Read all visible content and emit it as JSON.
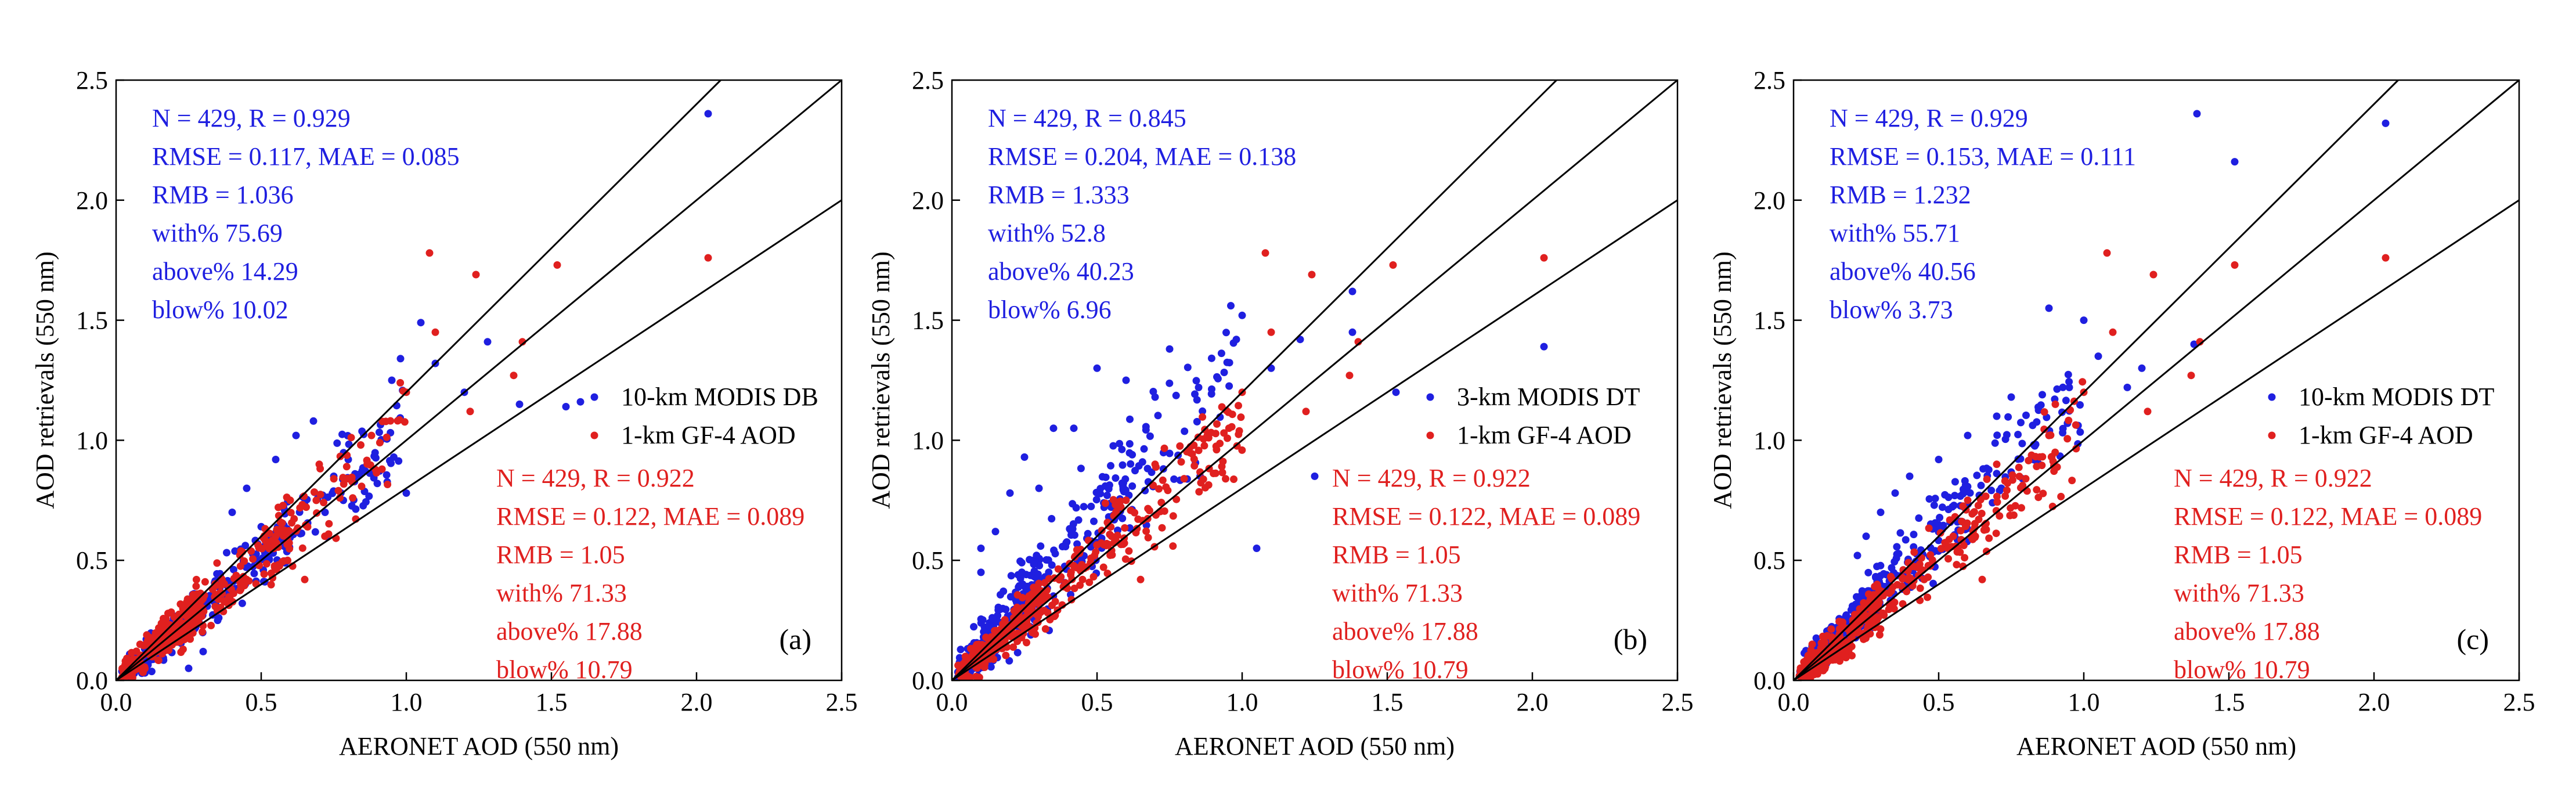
{
  "colors": {
    "modis": "#1f1fe0",
    "gf4": "#e0201f",
    "axis": "#000000"
  },
  "chart_data": [
    {
      "type": "scatter",
      "panel_label": "(a)",
      "xlabel": "AERONET AOD (550 nm)",
      "ylabel": "AOD retrievals (550 nm)",
      "xlim": [
        0,
        2.5
      ],
      "ylim": [
        0,
        2.5
      ],
      "xticks": [
        "0.0",
        "0.5",
        "1.0",
        "1.5",
        "2.0",
        "2.5"
      ],
      "yticks": [
        "0.0",
        "0.5",
        "1.0",
        "1.5",
        "2.0",
        "2.5"
      ],
      "reference_lines": [
        {
          "name": "1:1 line",
          "slope": 1.0
        },
        {
          "name": "upper EE envelope",
          "slope": 1.2
        },
        {
          "name": "lower EE envelope",
          "slope": 0.8
        }
      ],
      "legend": [
        {
          "label": "10-km MODIS DB",
          "color": "#1f1fe0"
        },
        {
          "label": "1-km GF-4 AOD",
          "color": "#e0201f"
        }
      ],
      "stats_modis": [
        "N = 429, R = 0.929",
        "RMSE = 0.117, MAE = 0.085",
        "RMB = 1.036",
        "with% 75.69",
        "above% 14.29",
        "blow% 10.02"
      ],
      "stats_gf4": [
        "N = 429, R = 0.922",
        "RMSE = 0.122, MAE = 0.089",
        "RMB = 1.05",
        "with% 71.33",
        "above% 17.88",
        "blow% 10.79"
      ],
      "series": [
        {
          "name": "10-km MODIS DB",
          "color": "#1f1fe0",
          "seed": 11,
          "slope": 1.04,
          "spread": 0.17,
          "points": [
            [
              2.04,
              2.36
            ],
            [
              1.28,
              1.41
            ],
            [
              1.6,
              1.16
            ],
            [
              1.55,
              1.14
            ],
            [
              1.39,
              1.15
            ],
            [
              1.05,
              1.49
            ],
            [
              0.98,
              1.34
            ],
            [
              1.1,
              1.32
            ],
            [
              1.2,
              1.2
            ],
            [
              0.95,
              1.25
            ],
            [
              1.0,
              0.78
            ],
            [
              0.9,
              0.82
            ],
            [
              0.68,
              1.08
            ],
            [
              0.62,
              1.02
            ],
            [
              0.55,
              0.92
            ],
            [
              0.45,
              0.8
            ],
            [
              0.4,
              0.7
            ],
            [
              0.5,
              0.64
            ],
            [
              0.75,
              0.85
            ],
            [
              0.8,
              0.92
            ],
            [
              0.72,
              0.7
            ],
            [
              0.35,
              0.25
            ],
            [
              0.3,
              0.12
            ],
            [
              0.25,
              0.05
            ]
          ]
        },
        {
          "name": "1-km GF-4 AOD",
          "color": "#e0201f",
          "seed": 23,
          "slope": 1.05,
          "spread": 0.18,
          "points": [
            [
              2.04,
              1.76
            ],
            [
              1.52,
              1.73
            ],
            [
              1.08,
              1.78
            ],
            [
              1.24,
              1.69
            ],
            [
              1.4,
              1.41
            ],
            [
              1.37,
              1.27
            ],
            [
              1.22,
              1.12
            ],
            [
              1.0,
              1.2
            ],
            [
              1.1,
              1.45
            ],
            [
              0.88,
              1.02
            ],
            [
              0.8,
              0.84
            ],
            [
              0.7,
              0.9
            ],
            [
              0.55,
              0.6
            ],
            [
              0.6,
              0.75
            ],
            [
              0.45,
              0.42
            ],
            [
              0.65,
              0.42
            ]
          ]
        }
      ]
    },
    {
      "type": "scatter",
      "panel_label": "(b)",
      "xlabel": "AERONET AOD (550 nm)",
      "ylabel": "AOD retrievals (550 nm)",
      "xlim": [
        0,
        2.5
      ],
      "ylim": [
        0,
        2.5
      ],
      "xticks": [
        "0.0",
        "0.5",
        "1.0",
        "1.5",
        "2.0",
        "2.5"
      ],
      "yticks": [
        "0.0",
        "0.5",
        "1.0",
        "1.5",
        "2.0",
        "2.5"
      ],
      "reference_lines": [
        {
          "name": "1:1 line",
          "slope": 1.0
        },
        {
          "name": "upper EE envelope",
          "slope": 1.2
        },
        {
          "name": "lower EE envelope",
          "slope": 0.8
        }
      ],
      "legend": [
        {
          "label": "3-km MODIS DT",
          "color": "#1f1fe0"
        },
        {
          "label": "1-km GF-4 AOD",
          "color": "#e0201f"
        }
      ],
      "stats_modis": [
        "N = 429, R = 0.845",
        "RMSE = 0.204, MAE = 0.138",
        "RMB = 1.333",
        "with% 52.8",
        "above% 40.23",
        "blow% 6.96"
      ],
      "stats_gf4": [
        "N = 429, R = 0.922",
        "RMSE = 0.122, MAE = 0.089",
        "RMB = 1.05",
        "with% 71.33",
        "above% 17.88",
        "blow% 10.79"
      ],
      "series": [
        {
          "name": "3-km MODIS DT",
          "color": "#1f1fe0",
          "seed": 37,
          "slope": 1.33,
          "spread": 0.3,
          "points": [
            [
              2.04,
              1.39
            ],
            [
              1.38,
              1.62
            ],
            [
              1.38,
              1.45
            ],
            [
              1.2,
              1.42
            ],
            [
              1.53,
              1.2
            ],
            [
              1.1,
              1.3
            ],
            [
              1.0,
              1.52
            ],
            [
              0.98,
              1.42
            ],
            [
              0.85,
              1.22
            ],
            [
              0.75,
              1.38
            ],
            [
              0.7,
              1.18
            ],
            [
              0.6,
              1.25
            ],
            [
              0.5,
              1.3
            ],
            [
              0.42,
              1.05
            ],
            [
              0.35,
              1.05
            ],
            [
              0.25,
              0.93
            ],
            [
              0.3,
              0.8
            ],
            [
              0.2,
              0.78
            ],
            [
              0.15,
              0.62
            ],
            [
              0.1,
              0.55
            ],
            [
              0.1,
              0.45
            ],
            [
              1.05,
              0.55
            ],
            [
              1.25,
              0.85
            ]
          ]
        },
        {
          "name": "1-km GF-4 AOD",
          "color": "#e0201f",
          "seed": 41,
          "slope": 1.05,
          "spread": 0.18,
          "points": [
            [
              2.04,
              1.76
            ],
            [
              1.52,
              1.73
            ],
            [
              1.08,
              1.78
            ],
            [
              1.24,
              1.69
            ],
            [
              1.4,
              1.41
            ],
            [
              1.37,
              1.27
            ],
            [
              1.22,
              1.12
            ],
            [
              1.0,
              1.2
            ],
            [
              1.1,
              1.45
            ],
            [
              0.88,
              1.02
            ],
            [
              0.8,
              0.84
            ],
            [
              0.7,
              0.9
            ],
            [
              0.55,
              0.6
            ],
            [
              0.6,
              0.75
            ],
            [
              0.45,
              0.42
            ],
            [
              0.65,
              0.42
            ]
          ]
        }
      ]
    },
    {
      "type": "scatter",
      "panel_label": "(c)",
      "xlabel": "AERONET AOD (550 nm)",
      "ylabel": "AOD retrievals (550 nm)",
      "xlim": [
        0,
        2.5
      ],
      "ylim": [
        0,
        2.5
      ],
      "xticks": [
        "0.0",
        "0.5",
        "1.0",
        "1.5",
        "2.0",
        "2.5"
      ],
      "yticks": [
        "0.0",
        "0.5",
        "1.0",
        "1.5",
        "2.0",
        "2.5"
      ],
      "reference_lines": [
        {
          "name": "1:1 line",
          "slope": 1.0
        },
        {
          "name": "upper EE envelope",
          "slope": 1.2
        },
        {
          "name": "lower EE envelope",
          "slope": 0.8
        }
      ],
      "legend": [
        {
          "label": "10-km MODIS DT",
          "color": "#1f1fe0"
        },
        {
          "label": "1-km GF-4 AOD",
          "color": "#e0201f"
        }
      ],
      "stats_modis": [
        "N = 429, R = 0.929",
        "RMSE = 0.153, MAE = 0.111",
        "RMB = 1.232",
        "with% 55.71",
        "above% 40.56",
        "blow% 3.73"
      ],
      "stats_gf4": [
        "N = 429, R = 0.922",
        "RMSE = 0.122, MAE = 0.089",
        "RMB = 1.05",
        "with% 71.33",
        "above% 17.88",
        "blow% 10.79"
      ],
      "series": [
        {
          "name": "10-km MODIS DT",
          "color": "#1f1fe0",
          "seed": 53,
          "slope": 1.23,
          "spread": 0.2,
          "points": [
            [
              1.39,
              2.36
            ],
            [
              2.04,
              2.32
            ],
            [
              1.52,
              2.16
            ],
            [
              0.88,
              1.55
            ],
            [
              1.0,
              1.5
            ],
            [
              1.05,
              1.35
            ],
            [
              1.2,
              1.3
            ],
            [
              1.38,
              1.4
            ],
            [
              1.15,
              1.22
            ],
            [
              0.95,
              1.22
            ],
            [
              0.75,
              1.18
            ],
            [
              0.7,
              1.1
            ],
            [
              0.6,
              1.02
            ],
            [
              0.5,
              0.92
            ],
            [
              0.4,
              0.85
            ],
            [
              0.35,
              0.78
            ],
            [
              0.3,
              0.7
            ],
            [
              0.25,
              0.6
            ],
            [
              0.22,
              0.52
            ]
          ]
        },
        {
          "name": "1-km GF-4 AOD",
          "color": "#e0201f",
          "seed": 67,
          "slope": 1.05,
          "spread": 0.18,
          "points": [
            [
              2.04,
              1.76
            ],
            [
              1.52,
              1.73
            ],
            [
              1.08,
              1.78
            ],
            [
              1.24,
              1.69
            ],
            [
              1.4,
              1.41
            ],
            [
              1.37,
              1.27
            ],
            [
              1.22,
              1.12
            ],
            [
              1.0,
              1.2
            ],
            [
              1.1,
              1.45
            ],
            [
              0.88,
              1.02
            ],
            [
              0.8,
              0.84
            ],
            [
              0.7,
              0.9
            ],
            [
              0.55,
              0.6
            ],
            [
              0.6,
              0.75
            ],
            [
              0.45,
              0.42
            ],
            [
              0.65,
              0.42
            ]
          ]
        }
      ]
    }
  ]
}
